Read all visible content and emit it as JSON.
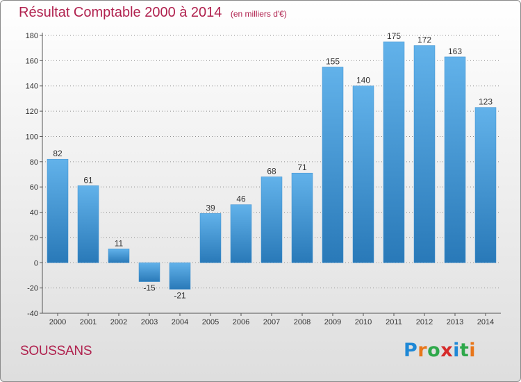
{
  "title": "Résultat Comptable 2000 à 2014",
  "subtitle": "(en milliers d'€)",
  "place": "SOUSSANS",
  "brand": {
    "letters": [
      "P",
      "r",
      "o",
      "x",
      "i",
      "t",
      "i"
    ],
    "colors": [
      "#1e88d6",
      "#e8761a",
      "#2ea84a",
      "#d62a2a",
      "#1e88d6",
      "#2ea84a",
      "#e8761a"
    ]
  },
  "colors": {
    "bar_top": "#62b2ea",
    "bar_bottom": "#2979b8",
    "axis": "#555555",
    "grid": "#8e8e8e",
    "title": "#b0214e"
  },
  "chart_data": {
    "type": "bar",
    "title": "Résultat Comptable 2000 à 2014",
    "subtitle": "(en milliers d'€)",
    "categories": [
      "2000",
      "2001",
      "2002",
      "2003",
      "2004",
      "2005",
      "2006",
      "2007",
      "2008",
      "2009",
      "2010",
      "2011",
      "2012",
      "2013",
      "2014"
    ],
    "values": [
      82,
      61,
      11,
      -15,
      -21,
      39,
      46,
      68,
      71,
      155,
      140,
      175,
      172,
      163,
      123
    ],
    "ylim": [
      -40,
      180
    ],
    "yticks": [
      -40,
      -20,
      0,
      20,
      40,
      60,
      80,
      100,
      120,
      140,
      160,
      180
    ],
    "grid": true,
    "legend": "none"
  }
}
